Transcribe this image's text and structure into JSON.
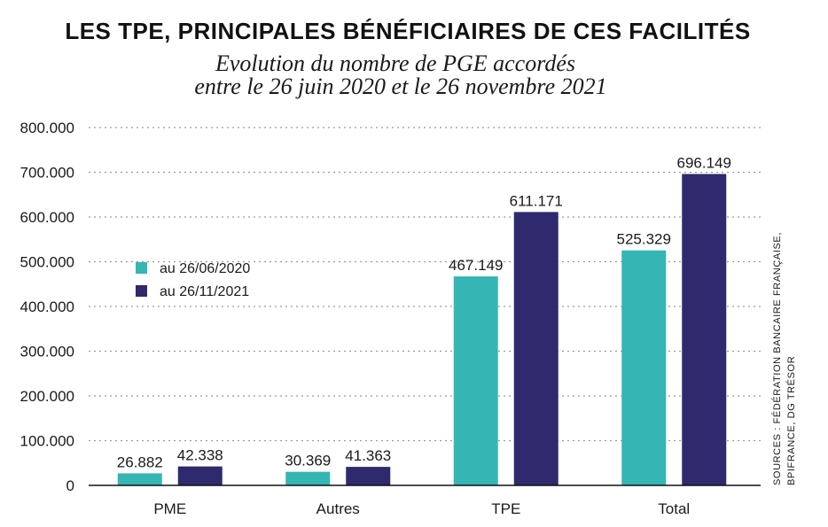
{
  "chart_data": {
    "type": "bar",
    "title": "LES TPE, PRINCIPALES BÉNÉFICIAIRES DE CES FACILITÉS",
    "subtitle_line1": "Evolution du nombre de PGE accordés",
    "subtitle_line2": "entre le 26 juin 2020 et le 26 novembre 2021",
    "categories": [
      "PME",
      "Autres",
      "TPE",
      "Total"
    ],
    "series": [
      {
        "name": "au 26/06/2020",
        "color": "#35b5b3",
        "values": [
          26882,
          30369,
          467149,
          525329
        ],
        "labels": [
          "26.882",
          "30.369",
          "467.149",
          "525.329"
        ]
      },
      {
        "name": "au 26/11/2021",
        "color": "#2f2a6e",
        "values": [
          42338,
          41363,
          611171,
          696149
        ],
        "labels": [
          "42.338",
          "41.363",
          "611.171",
          "696.149"
        ]
      }
    ],
    "ylim": [
      0,
      800000
    ],
    "yticks": [
      0,
      100000,
      200000,
      300000,
      400000,
      500000,
      600000,
      700000,
      800000
    ],
    "ytick_labels": [
      "0",
      "100.000",
      "200.000",
      "300.000",
      "400.000",
      "500.000",
      "600.000",
      "700.000",
      "800.000"
    ],
    "grid": true,
    "legend_position": "left",
    "xlabel": "",
    "ylabel": ""
  },
  "source_line1": "SOURCES : FÉDÉRATION BANCAIRE FRANÇAISE,",
  "source_line2": "BPIFRANCE, DG TRÉSOR"
}
